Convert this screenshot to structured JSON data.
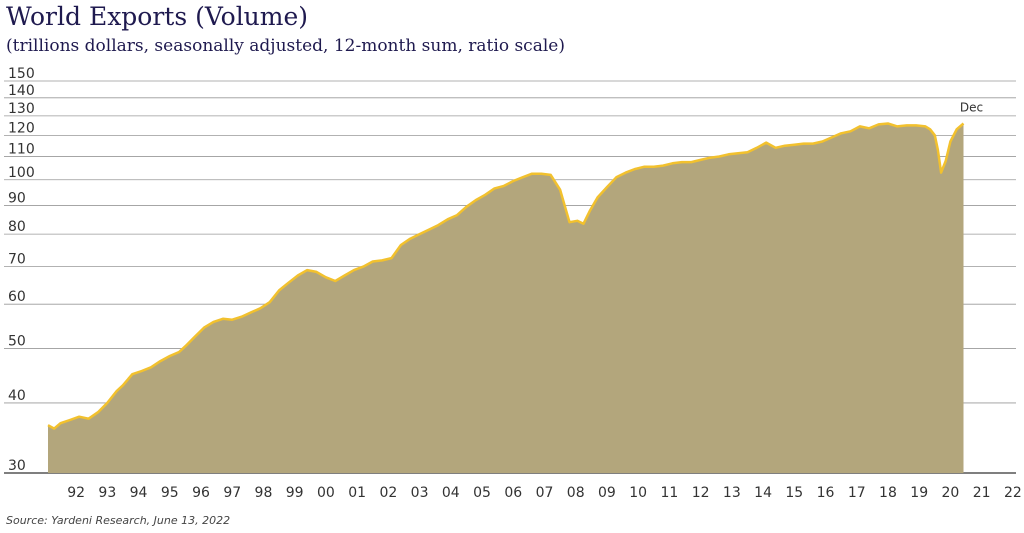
{
  "chart_data": {
    "type": "area",
    "title": "World Exports (Volume)",
    "subtitle": "(trillions dollars, seasonally adjusted, 12-month sum, ratio scale)",
    "source": "Source: Yardeni Research, June 13, 2022",
    "y_scale": "log",
    "ylim": [
      30,
      150
    ],
    "y_ticks": [
      150,
      140,
      130,
      120,
      110,
      100,
      90,
      80,
      70,
      60,
      50,
      40,
      30
    ],
    "xlim": [
      1991.6,
      2022.6
    ],
    "x_ticks": [
      {
        "year": 1992,
        "label": "92"
      },
      {
        "year": 1993,
        "label": "93"
      },
      {
        "year": 1994,
        "label": "94"
      },
      {
        "year": 1995,
        "label": "95"
      },
      {
        "year": 1996,
        "label": "96"
      },
      {
        "year": 1997,
        "label": "97"
      },
      {
        "year": 1998,
        "label": "98"
      },
      {
        "year": 1999,
        "label": "99"
      },
      {
        "year": 2000,
        "label": "00"
      },
      {
        "year": 2001,
        "label": "01"
      },
      {
        "year": 2002,
        "label": "02"
      },
      {
        "year": 2003,
        "label": "03"
      },
      {
        "year": 2004,
        "label": "04"
      },
      {
        "year": 2005,
        "label": "05"
      },
      {
        "year": 2006,
        "label": "06"
      },
      {
        "year": 2007,
        "label": "07"
      },
      {
        "year": 2008,
        "label": "08"
      },
      {
        "year": 2009,
        "label": "09"
      },
      {
        "year": 2010,
        "label": "10"
      },
      {
        "year": 2011,
        "label": "11"
      },
      {
        "year": 2012,
        "label": "12"
      },
      {
        "year": 2013,
        "label": "13"
      },
      {
        "year": 2014,
        "label": "14"
      },
      {
        "year": 2015,
        "label": "15"
      },
      {
        "year": 2016,
        "label": "16"
      },
      {
        "year": 2017,
        "label": "17"
      },
      {
        "year": 2018,
        "label": "18"
      },
      {
        "year": 2019,
        "label": "19"
      },
      {
        "year": 2020,
        "label": "20"
      },
      {
        "year": 2021,
        "label": "21"
      },
      {
        "year": 2022,
        "label": "22"
      }
    ],
    "grid": "horizontal",
    "colors": {
      "fill": "#b3a67c",
      "line": "#f2c12e",
      "grid": "#999999",
      "text": "#333333"
    },
    "annotation": {
      "label": "Dec",
      "x": 2020.92,
      "y": 127
    },
    "series": [
      {
        "x": [
          1991.6,
          1991.8,
          1992.0,
          1992.3,
          1992.6,
          1992.9,
          1993.2,
          1993.5,
          1993.8,
          1994.0,
          1994.3,
          1994.6,
          1994.9,
          1995.2,
          1995.5,
          1995.8,
          1996.0,
          1996.3,
          1996.6,
          1996.9,
          1997.2,
          1997.5,
          1997.8,
          1998.1,
          1998.4,
          1998.7,
          1999.0,
          1999.3,
          1999.6,
          1999.9,
          2000.2,
          2000.5,
          2000.8,
          2001.1,
          2001.4,
          2001.7,
          2002.0,
          2002.3,
          2002.6,
          2002.9,
          2003.2,
          2003.5,
          2003.8,
          2004.1,
          2004.4,
          2004.7,
          2005.0,
          2005.3,
          2005.6,
          2005.9,
          2006.2,
          2006.5,
          2006.8,
          2007.1,
          2007.4,
          2007.7,
          2008.0,
          2008.3,
          2008.55,
          2008.75,
          2008.95,
          2009.2,
          2009.5,
          2009.8,
          2010.1,
          2010.4,
          2010.7,
          2011.0,
          2011.3,
          2011.6,
          2011.9,
          2012.2,
          2012.5,
          2012.8,
          2013.1,
          2013.4,
          2013.7,
          2014.0,
          2014.3,
          2014.6,
          2014.9,
          2015.2,
          2015.5,
          2015.8,
          2016.1,
          2016.4,
          2016.7,
          2017.0,
          2017.3,
          2017.6,
          2017.9,
          2018.2,
          2018.5,
          2018.8,
          2019.1,
          2019.4,
          2019.7,
          2019.85,
          2020.0,
          2020.1,
          2020.2,
          2020.35,
          2020.5,
          2020.7,
          2020.92
        ],
        "y": [
          36.5,
          36.0,
          36.8,
          37.3,
          37.8,
          37.5,
          38.5,
          40.0,
          42.0,
          43.0,
          45.0,
          45.6,
          46.3,
          47.5,
          48.5,
          49.3,
          50.5,
          52.5,
          54.5,
          55.8,
          56.5,
          56.3,
          57.0,
          58.0,
          59.0,
          60.5,
          63.5,
          65.5,
          67.5,
          69.0,
          68.5,
          67.0,
          66.0,
          67.5,
          69.0,
          70.0,
          71.5,
          71.8,
          72.5,
          76.5,
          78.5,
          80.0,
          81.5,
          83.0,
          85.0,
          86.5,
          89.5,
          92.0,
          94.0,
          96.5,
          97.5,
          99.5,
          101.0,
          102.5,
          102.5,
          102.0,
          96.0,
          84.0,
          84.5,
          83.5,
          88.0,
          93.0,
          97.0,
          101.0,
          103.0,
          104.5,
          105.5,
          105.5,
          106.0,
          107.0,
          107.5,
          107.5,
          108.5,
          109.5,
          110.0,
          111.0,
          111.5,
          112.0,
          114.0,
          116.5,
          114.0,
          115.0,
          115.5,
          116.0,
          116.0,
          117.0,
          119.0,
          121.0,
          122.0,
          124.5,
          123.5,
          125.5,
          126.0,
          124.5,
          125.0,
          125.0,
          124.5,
          123.0,
          120.0,
          113.0,
          103.0,
          108.0,
          117.0,
          123.0,
          126.0
        ]
      }
    ]
  }
}
